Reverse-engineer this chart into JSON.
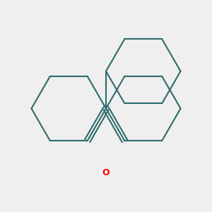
{
  "bg_color": "#efefef",
  "line_color": "#2d6b6b",
  "o_color": "#ff0000",
  "line_width": 1.5,
  "o_fontsize": 9,
  "figsize": [
    3.0,
    3.0
  ],
  "dpi": 100,
  "scale": 0.72
}
